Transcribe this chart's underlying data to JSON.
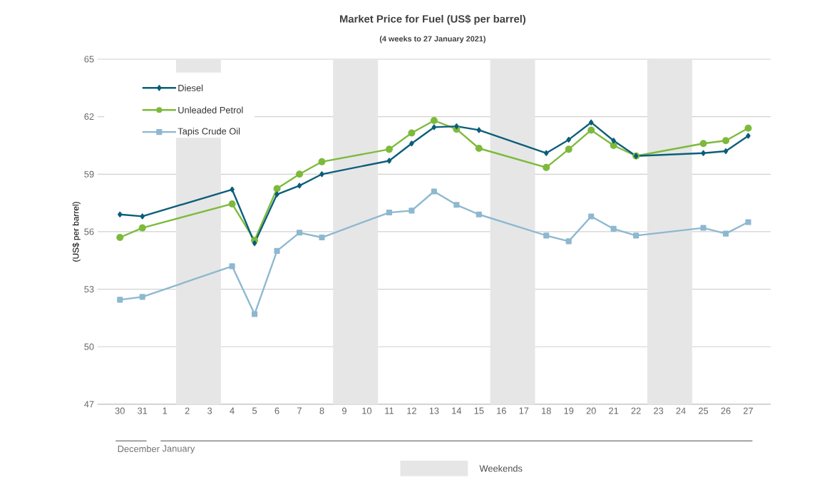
{
  "chart_data": {
    "type": "line",
    "title": "Market Price for Fuel (US$ per barrel)",
    "subtitle": "(4 weeks to 27 January 2021)",
    "ylabel": "(US$ per barrel)",
    "x": [
      "2020-12-30",
      "2020-12-31",
      "2021-01-04",
      "2021-01-05",
      "2021-01-06",
      "2021-01-07",
      "2021-01-08",
      "2021-01-11",
      "2021-01-12",
      "2021-01-13",
      "2021-01-14",
      "2021-01-15",
      "2021-01-18",
      "2021-01-19",
      "2021-01-20",
      "2021-01-21",
      "2021-01-22",
      "2021-01-25",
      "2021-01-26",
      "2021-01-27"
    ],
    "series": [
      {
        "name": "Diesel",
        "color": "#0b5e7a",
        "marker": "diamond",
        "values": [
          56.9,
          56.8,
          58.2,
          55.4,
          57.95,
          58.4,
          59.0,
          59.7,
          60.6,
          61.45,
          61.5,
          61.3,
          60.1,
          60.8,
          61.7,
          60.75,
          59.95,
          60.1,
          60.2,
          61.0
        ]
      },
      {
        "name": "Unleaded Petrol",
        "color": "#7dba3c",
        "marker": "circle",
        "values": [
          55.7,
          56.2,
          57.45,
          55.55,
          58.25,
          59.0,
          59.65,
          60.3,
          61.15,
          61.8,
          61.35,
          60.35,
          59.35,
          60.3,
          61.3,
          60.5,
          59.95,
          60.6,
          60.75,
          61.4
        ]
      },
      {
        "name": "Tapis Crude Oil",
        "color": "#8db8d0",
        "marker": "square",
        "values": [
          52.45,
          52.6,
          54.2,
          51.7,
          55.0,
          55.95,
          55.7,
          57.0,
          57.1,
          58.1,
          57.4,
          56.9,
          55.8,
          55.5,
          56.8,
          56.15,
          55.8,
          56.2,
          55.9,
          56.5
        ]
      }
    ],
    "xlim": [
      "2020-12-29",
      "2021-01-28"
    ],
    "xticks": [
      {
        "value": "2020-12-30",
        "label": "30"
      },
      {
        "value": "2020-12-31",
        "label": "31"
      },
      {
        "value": "2021-01-01",
        "label": "1"
      },
      {
        "value": "2021-01-02",
        "label": "2"
      },
      {
        "value": "2021-01-03",
        "label": "3"
      },
      {
        "value": "2021-01-04",
        "label": "4"
      },
      {
        "value": "2021-01-05",
        "label": "5"
      },
      {
        "value": "2021-01-06",
        "label": "6"
      },
      {
        "value": "2021-01-07",
        "label": "7"
      },
      {
        "value": "2021-01-08",
        "label": "8"
      },
      {
        "value": "2021-01-09",
        "label": "9"
      },
      {
        "value": "2021-01-10",
        "label": "10"
      },
      {
        "value": "2021-01-11",
        "label": "11"
      },
      {
        "value": "2021-01-12",
        "label": "12"
      },
      {
        "value": "2021-01-13",
        "label": "13"
      },
      {
        "value": "2021-01-14",
        "label": "14"
      },
      {
        "value": "2021-01-15",
        "label": "15"
      },
      {
        "value": "2021-01-16",
        "label": "16"
      },
      {
        "value": "2021-01-17",
        "label": "17"
      },
      {
        "value": "2021-01-18",
        "label": "18"
      },
      {
        "value": "2021-01-19",
        "label": "19"
      },
      {
        "value": "2021-01-20",
        "label": "20"
      },
      {
        "value": "2021-01-21",
        "label": "21"
      },
      {
        "value": "2021-01-22",
        "label": "22"
      },
      {
        "value": "2021-01-23",
        "label": "23"
      },
      {
        "value": "2021-01-24",
        "label": "24"
      },
      {
        "value": "2021-01-25",
        "label": "25"
      },
      {
        "value": "2021-01-26",
        "label": "26"
      },
      {
        "value": "2021-01-27",
        "label": "27"
      }
    ],
    "ylim": [
      47,
      65
    ],
    "yticks": [
      47,
      50,
      53,
      56,
      59,
      62,
      65
    ],
    "bands": [
      {
        "axis": "x",
        "from": "2021-01-01T12:00",
        "to": "2021-01-03T12:00",
        "color": "#e6e6e6"
      },
      {
        "axis": "x",
        "from": "2021-01-08T12:00",
        "to": "2021-01-10T12:00",
        "color": "#e6e6e6"
      },
      {
        "axis": "x",
        "from": "2021-01-15T12:00",
        "to": "2021-01-17T12:00",
        "color": "#e6e6e6"
      },
      {
        "axis": "x",
        "from": "2021-01-22T12:00",
        "to": "2021-01-24T12:00",
        "color": "#e6e6e6"
      }
    ],
    "annotations": [
      "December",
      "January",
      "Weekends"
    ],
    "grid": "y",
    "legend": "top left",
    "line_style": "solid"
  }
}
